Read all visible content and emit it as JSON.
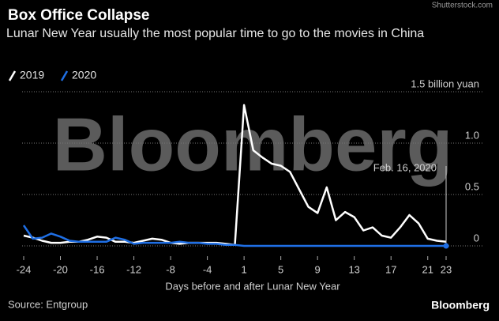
{
  "chart_data": {
    "type": "line",
    "title": "Box Office Collapse",
    "subtitle": "Lunar New Year usually the most popular time to go to the movies in China",
    "watermark": "Bloomberg",
    "credit": "Shutterstock.com",
    "logo": "Bloomberg",
    "source": "Source: Entgroup",
    "x_label": "Days before and after Lunar New Year",
    "annotation": "Feb. 16, 2020",
    "categories": [
      "-24",
      null,
      null,
      null,
      "-20",
      null,
      null,
      null,
      "-16",
      null,
      null,
      null,
      "-12",
      null,
      null,
      null,
      "-8",
      null,
      null,
      null,
      "-4",
      null,
      null,
      null,
      "1",
      null,
      null,
      null,
      "5",
      null,
      null,
      null,
      "9",
      null,
      null,
      null,
      "13",
      null,
      null,
      null,
      "17",
      null,
      null,
      null,
      "21",
      null,
      "23"
    ],
    "series": [
      {
        "name": "2019",
        "color": "#ffffff",
        "values": [
          0.1,
          0.08,
          0.05,
          0.03,
          0.03,
          0.04,
          0.04,
          0.06,
          0.09,
          0.08,
          0.04,
          0.04,
          0.03,
          0.05,
          0.07,
          0.06,
          0.03,
          0.02,
          0.03,
          0.03,
          0.03,
          0.03,
          0.02,
          0.01,
          1.37,
          0.93,
          0.86,
          0.8,
          0.78,
          0.72,
          0.55,
          0.38,
          0.32,
          0.57,
          0.25,
          0.33,
          0.28,
          0.15,
          0.18,
          0.1,
          0.08,
          0.18,
          0.3,
          0.22,
          0.07,
          0.05,
          0.04
        ]
      },
      {
        "name": "2020",
        "color": "#1f6fe5",
        "values": [
          0.2,
          0.07,
          0.08,
          0.12,
          0.09,
          0.05,
          0.04,
          0.04,
          0.04,
          0.04,
          0.08,
          0.06,
          0.02,
          0.03,
          0.03,
          0.03,
          0.03,
          0.04,
          0.03,
          0.03,
          0.02,
          0.02,
          0.01,
          0.01,
          0,
          0,
          0,
          0,
          0,
          0,
          0,
          0,
          0,
          0,
          0,
          0,
          0,
          0,
          0,
          0,
          0,
          0,
          0,
          0,
          0,
          0,
          0
        ]
      }
    ],
    "ylim": [
      0,
      1.5
    ],
    "yticks": [
      0,
      0.5,
      {
        "value": 1,
        "label": "1.0"
      },
      {
        "value": 1.5,
        "label": "1.5 billion yuan"
      }
    ],
    "grid": true
  }
}
